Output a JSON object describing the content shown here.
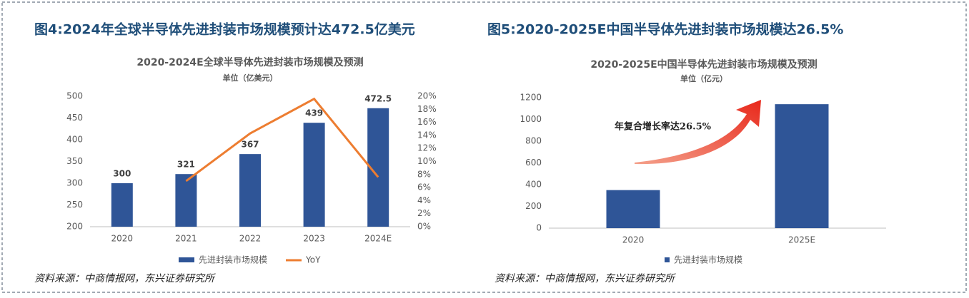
{
  "chart_data": [
    {
      "type": "bar",
      "figure_title": "图4:2024年全球半导体先进封装市场规模预计达472.5亿美元",
      "title": "2020-2024E全球半导体先进封装市场规模及预测",
      "subtitle": "单位（亿美元）",
      "categories": [
        "2020",
        "2021",
        "2022",
        "2023",
        "2024E"
      ],
      "series": [
        {
          "name": "先进封装市场规模",
          "color": "#2f5597",
          "values": [
            300,
            321,
            367,
            439,
            472.5
          ]
        },
        {
          "name": "YoY",
          "color": "#ed7d31",
          "type": "line",
          "axis": "y2",
          "values": [
            null,
            7,
            14.3,
            19.6,
            7.6
          ]
        }
      ],
      "data_labels": true,
      "ylim": [
        200,
        500
      ],
      "yticks": [
        200,
        250,
        300,
        350,
        400,
        450,
        500
      ],
      "y2lim": [
        0,
        20
      ],
      "y2ticks": [
        {
          "value": 0,
          "label": "0%"
        },
        {
          "value": 2,
          "label": "2%"
        },
        {
          "value": 4,
          "label": "4%"
        },
        {
          "value": 6,
          "label": "6%"
        },
        {
          "value": 8,
          "label": "8%"
        },
        {
          "value": 10,
          "label": "10%"
        },
        {
          "value": 12,
          "label": "12%"
        },
        {
          "value": 14,
          "label": "14%"
        },
        {
          "value": 16,
          "label": "16%"
        },
        {
          "value": 18,
          "label": "18%"
        },
        {
          "value": 20,
          "label": "20%"
        }
      ],
      "source": "资料来源：中商情报网，东兴证券研究所"
    },
    {
      "type": "bar",
      "figure_title": "图5:2020-2025E中国半导体先进封装市场规模达26.5%",
      "title": "2020-2025E中国半导体先进封装市场规模及预测",
      "subtitle": "单位（亿元）",
      "annotation": "年复合增长率达26.5%",
      "categories": [
        "2020",
        "2025E"
      ],
      "series": [
        {
          "name": "先进封装市场规模",
          "color": "#2f5597",
          "values": [
            350,
            1140
          ]
        }
      ],
      "data_labels": false,
      "ylim": [
        0,
        1200
      ],
      "yticks": [
        0,
        200,
        400,
        600,
        800,
        1000,
        1200
      ],
      "source": "资料来源：中商情报网，东兴证券研究所"
    }
  ]
}
